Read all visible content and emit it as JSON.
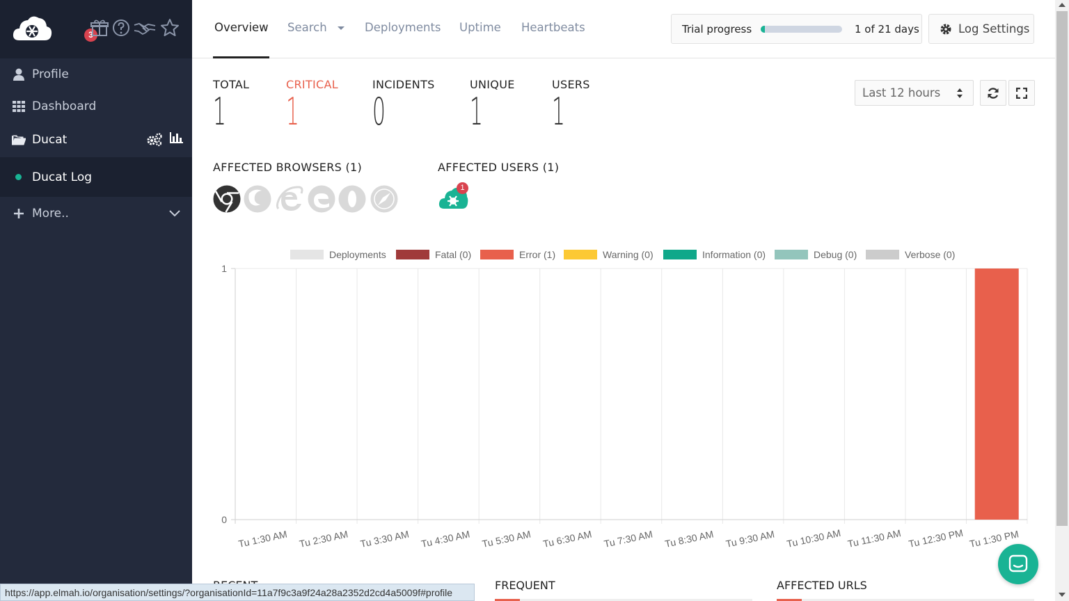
{
  "sidebar": {
    "notifications_badge": "3",
    "items": [
      {
        "label": "Profile",
        "icon": "user-icon"
      },
      {
        "label": "Dashboard",
        "icon": "grid-icon"
      },
      {
        "label": "Ducat",
        "icon": "folder-icon"
      },
      {
        "label": "Ducat Log",
        "icon": "status-dot"
      },
      {
        "label": "More..",
        "icon": "plus-icon"
      }
    ]
  },
  "nav": {
    "tabs": [
      "Overview",
      "Search",
      "Deployments",
      "Uptime",
      "Heartbeats"
    ],
    "active_tab": "Overview"
  },
  "trial": {
    "label": "Trial progress",
    "days_text": "1 of 21 days",
    "progress": 0.048
  },
  "log_settings_label": "Log Settings",
  "stats": [
    {
      "label": "TOTAL",
      "value": "1"
    },
    {
      "label": "CRITICAL",
      "value": "1"
    },
    {
      "label": "INCIDENTS",
      "value": "0"
    },
    {
      "label": "UNIQUE",
      "value": "1"
    },
    {
      "label": "USERS",
      "value": "1"
    }
  ],
  "time_range": "Last 12 hours",
  "affected_browsers_title": "AFFECTED BROWSERS (1)",
  "affected_users_title": "AFFECTED USERS (1)",
  "affected_users_badge": "1",
  "chart_data": {
    "type": "bar",
    "legend": [
      {
        "name": "Deployments",
        "color": "#e5e5e5"
      },
      {
        "name": "Fatal (0)",
        "color": "#a03a3a"
      },
      {
        "name": "Error (1)",
        "color": "#e8604c"
      },
      {
        "name": "Warning (0)",
        "color": "#fcc934"
      },
      {
        "name": "Information (0)",
        "color": "#10a88a"
      },
      {
        "name": "Debug (0)",
        "color": "#93c5bc"
      },
      {
        "name": "Verbose (0)",
        "color": "#cccccc"
      }
    ],
    "categories": [
      "Tu 1:30 AM",
      "Tu 2:30 AM",
      "Tu 3:30 AM",
      "Tu 4:30 AM",
      "Tu 5:30 AM",
      "Tu 6:30 AM",
      "Tu 7:30 AM",
      "Tu 8:30 AM",
      "Tu 9:30 AM",
      "Tu 10:30 AM",
      "Tu 11:30 AM",
      "Tu 12:30 PM",
      "Tu 1:30 PM"
    ],
    "series": [
      {
        "name": "Error (1)",
        "values": [
          0,
          0,
          0,
          0,
          0,
          0,
          0,
          0,
          0,
          0,
          0,
          0,
          1
        ]
      }
    ],
    "ylim": [
      0,
      1
    ],
    "yticks": [
      "0",
      "1"
    ],
    "legend_position": "top"
  },
  "bottom_sections": [
    "RECENT",
    "FREQUENT",
    "AFFECTED URLS"
  ],
  "status_url": "https://app.elmah.io/organisation/settings/?organisationId=11a7f9c3a9f24a28a2352d2cd4a5009f#profile"
}
